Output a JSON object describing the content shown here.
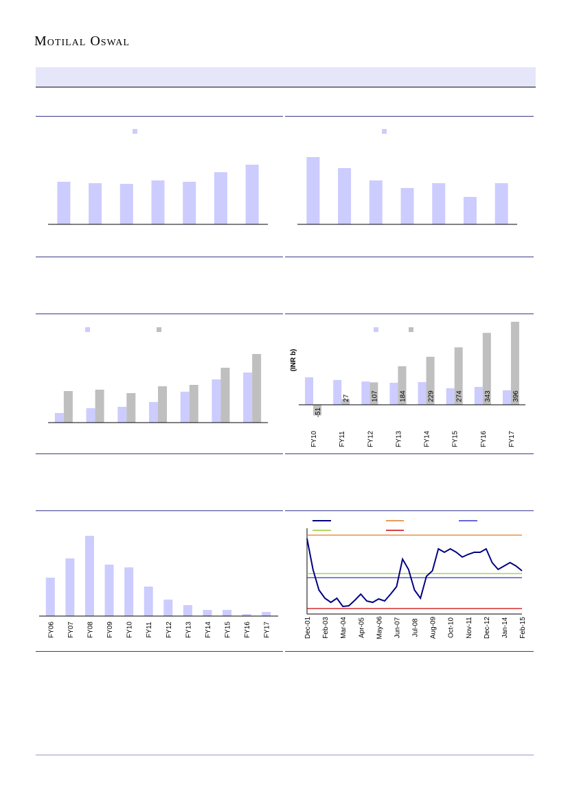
{
  "brand": "Motilal Oswal",
  "chart_data": [
    {
      "type": "bar",
      "series": [
        {
          "color": "#ccccff",
          "values": [
            62,
            60,
            59,
            64,
            62,
            76,
            87
          ]
        }
      ],
      "ylim": [
        0,
        130
      ]
    },
    {
      "type": "bar",
      "series": [
        {
          "color": "#ccccff",
          "values": [
            98,
            82,
            64,
            53,
            60,
            40,
            60
          ]
        }
      ],
      "ylim": [
        0,
        130
      ]
    },
    {
      "type": "bar",
      "series": [
        {
          "color": "#ccccff",
          "values": [
            14,
            21,
            23,
            30,
            45,
            63,
            73
          ]
        },
        {
          "color": "#bfbfbf",
          "values": [
            46,
            48,
            43,
            53,
            55,
            80,
            100
          ]
        }
      ],
      "ylim": [
        0,
        130
      ]
    },
    {
      "type": "bar",
      "y_label": "(INR b)",
      "categories": [
        "FY10",
        "FY11",
        "FY12",
        "FY13",
        "FY14",
        "FY15",
        "FY16",
        "FY17"
      ],
      "series": [
        {
          "color": "#ccccff",
          "values": [
            131,
            118,
            111,
            105,
            108,
            79,
            85,
            69
          ]
        },
        {
          "color": "#bfbfbf",
          "values": [
            -51,
            27,
            107,
            184,
            229,
            274,
            343,
            396
          ],
          "labels": true
        }
      ],
      "ylim": [
        -60,
        420
      ]
    },
    {
      "type": "bar",
      "categories": [
        "FY06",
        "FY07",
        "FY08",
        "FY09",
        "FY10",
        "FY11",
        "FY12",
        "FY13",
        "FY14",
        "FY15",
        "FY16",
        "FY17"
      ],
      "series": [
        {
          "color": "#ccccff",
          "values": [
            56,
            84,
            117,
            75,
            71,
            43,
            24,
            16,
            9,
            9,
            3,
            6
          ]
        }
      ],
      "ylim": [
        0,
        130
      ]
    },
    {
      "type": "line",
      "categories": [
        "Dec-01",
        null,
        null,
        "Feb-03",
        null,
        null,
        "Mar-04",
        null,
        null,
        "Apr-05",
        null,
        null,
        "May-06",
        null,
        null,
        "Jun-07",
        null,
        null,
        "Jul-08",
        null,
        null,
        "Aug-09",
        null,
        null,
        "Oct-10",
        null,
        null,
        "Nov-11",
        null,
        null,
        "Dec-12",
        null,
        null,
        "Jan-14",
        null,
        null,
        "Feb-15"
      ],
      "series": [
        {
          "color": "#000080",
          "values": [
            110,
            65,
            35,
            23,
            17,
            23,
            11,
            12,
            20,
            29,
            19,
            17,
            22,
            19,
            29,
            40,
            80,
            65,
            35,
            23,
            55,
            63,
            95,
            90,
            95,
            90,
            83,
            87,
            90,
            90,
            95,
            75,
            65,
            70,
            75,
            70,
            63
          ]
        }
      ],
      "hlines": [
        {
          "value": 115,
          "color": "#e07b20"
        },
        {
          "value": 59,
          "color": "#99cc33"
        },
        {
          "value": 53,
          "color": "#3333cc"
        },
        {
          "value": 8,
          "color": "#cc0000"
        }
      ],
      "ylim": [
        0,
        120
      ]
    }
  ]
}
